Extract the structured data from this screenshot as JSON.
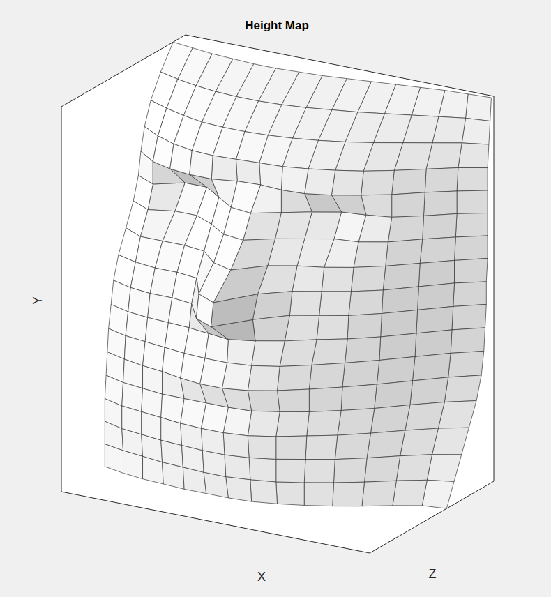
{
  "chart_data": {
    "type": "surface",
    "title": "Height Map",
    "xlabel": "X",
    "ylabel": "Y",
    "zlabel": "Z",
    "tick_labels": false,
    "color": "#333333",
    "xlim": [
      0,
      140
    ],
    "ylim": [
      0,
      170
    ],
    "zlim": [
      0,
      100
    ],
    "x": [
      0,
      10,
      20,
      30,
      40,
      50,
      60,
      70,
      80,
      90,
      100,
      110,
      120,
      130,
      140
    ],
    "y": [
      0,
      10,
      20,
      30,
      40,
      50,
      60,
      70,
      80,
      90,
      100,
      110,
      120,
      130,
      140,
      150,
      160,
      170
    ],
    "z": [
      [
        65,
        68,
        70,
        71,
        72,
        72,
        72,
        71,
        68,
        64,
        59,
        53,
        46,
        40,
        38
      ],
      [
        65,
        68,
        70,
        72,
        73,
        74,
        74,
        72,
        69,
        64,
        58,
        51,
        43,
        36,
        32
      ],
      [
        65,
        69,
        71,
        73,
        74,
        75,
        75,
        73,
        69,
        63,
        57,
        49,
        40,
        32,
        26
      ],
      [
        65,
        69,
        71,
        73,
        75,
        76,
        76,
        74,
        69,
        62,
        55,
        46,
        36,
        27,
        20
      ],
      [
        64,
        68,
        70,
        72,
        72,
        72,
        72,
        71,
        66,
        60,
        52,
        43,
        32,
        22,
        14
      ],
      [
        63,
        67,
        70,
        72,
        75,
        77,
        77,
        74,
        68,
        60,
        51,
        41,
        30,
        19,
        10
      ],
      [
        62,
        66,
        68,
        70,
        72,
        73,
        73,
        71,
        66,
        58,
        49,
        39,
        28,
        17,
        8
      ],
      [
        60,
        64,
        66,
        67,
        68,
        70,
        72,
        68,
        62,
        54,
        47,
        38,
        27,
        16,
        7
      ],
      [
        58,
        62,
        64,
        64,
        66,
        80,
        86,
        70,
        58,
        52,
        46,
        37,
        26,
        15,
        6
      ],
      [
        54,
        58,
        60,
        60,
        62,
        78,
        84,
        66,
        56,
        50,
        44,
        36,
        25,
        14,
        6
      ],
      [
        48,
        54,
        54,
        54,
        56,
        66,
        70,
        58,
        52,
        48,
        42,
        34,
        24,
        14,
        5
      ],
      [
        42,
        48,
        44,
        44,
        50,
        58,
        60,
        52,
        46,
        40,
        38,
        32,
        22,
        13,
        5
      ],
      [
        38,
        44,
        36,
        36,
        44,
        52,
        54,
        47,
        40,
        34,
        32,
        29,
        21,
        12,
        5
      ],
      [
        36,
        44,
        48,
        50,
        50,
        47,
        46,
        47,
        46,
        42,
        36,
        29,
        20,
        12,
        5
      ],
      [
        33,
        40,
        45,
        48,
        49,
        48,
        47,
        46,
        43,
        39,
        34,
        27,
        19,
        11,
        5
      ],
      [
        28,
        33,
        37,
        40,
        41,
        41,
        40,
        38,
        35,
        31,
        26,
        20,
        14,
        8,
        4
      ],
      [
        20,
        24,
        27,
        29,
        30,
        30,
        29,
        27,
        24,
        21,
        17,
        13,
        9,
        5,
        3
      ],
      [
        10,
        12,
        14,
        15,
        16,
        16,
        15,
        14,
        12,
        10,
        8,
        6,
        4,
        3,
        2
      ]
    ]
  }
}
